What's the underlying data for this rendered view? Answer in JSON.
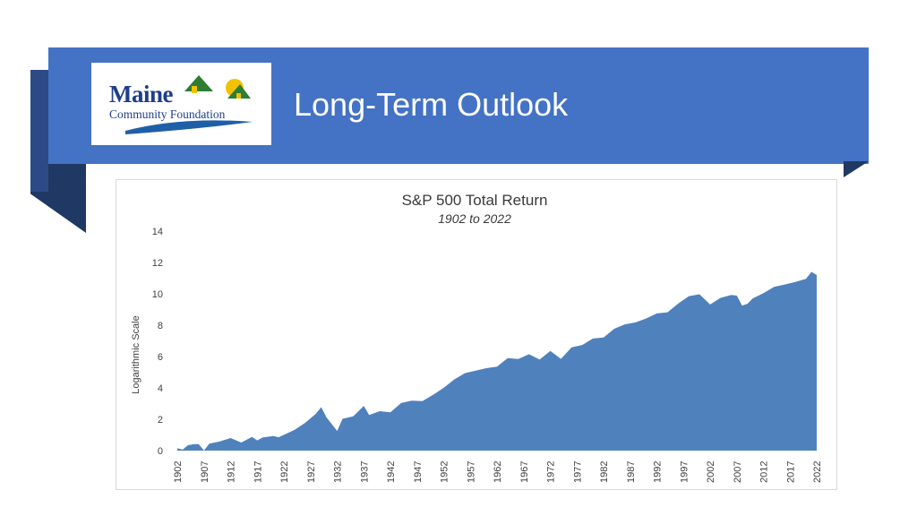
{
  "header": {
    "title": "Long-Term Outlook",
    "logo": {
      "name": "Maine",
      "subtitle": "Community Foundation"
    }
  },
  "colors": {
    "banner": "#4472c4",
    "ribbon_dark": "#1f3864",
    "area_fill": "#4f81bd",
    "logo_text": "#1f3f8a"
  },
  "chart_data": {
    "type": "area",
    "title": "S&P 500 Total Return",
    "subtitle": "1902 to 2022",
    "ylabel": "Logarithmic Scale",
    "xlabel": "",
    "ylim": [
      0,
      14
    ],
    "xlim": [
      1902,
      2022
    ],
    "yticks": [
      "0",
      "2",
      "4",
      "6",
      "8",
      "10",
      "12",
      "14"
    ],
    "xticks": [
      "1902",
      "1907",
      "1912",
      "1917",
      "1922",
      "1927",
      "1932",
      "1937",
      "1942",
      "1947",
      "1952",
      "1957",
      "1962",
      "1967",
      "1972",
      "1977",
      "1982",
      "1987",
      "1992",
      "1997",
      "2002",
      "2007",
      "2012",
      "2017",
      "2022"
    ],
    "grid": false,
    "legend": "none",
    "series": [
      {
        "x": [
          1902,
          1903,
          1904,
          1905,
          1906,
          1907,
          1908,
          1910,
          1912,
          1914,
          1916,
          1917,
          1918,
          1920,
          1921,
          1924,
          1926,
          1928,
          1929,
          1930,
          1932,
          1933,
          1935,
          1937,
          1938,
          1940,
          1942,
          1944,
          1946,
          1948,
          1950,
          1952,
          1954,
          1956,
          1958,
          1960,
          1962,
          1964,
          1966,
          1968,
          1970,
          1972,
          1974,
          1976,
          1978,
          1980,
          1982,
          1984,
          1986,
          1988,
          1990,
          1992,
          1994,
          1996,
          1998,
          2000,
          2002,
          2004,
          2006,
          2007,
          2008,
          2009,
          2010,
          2012,
          2014,
          2016,
          2018,
          2020,
          2021,
          2022
        ],
        "y": [
          0.15,
          0.02,
          0.3,
          0.4,
          0.45,
          0.05,
          0.45,
          0.55,
          0.75,
          0.5,
          0.9,
          0.7,
          0.85,
          0.9,
          0.8,
          1.3,
          1.8,
          2.4,
          2.8,
          2.1,
          1.2,
          2.0,
          2.2,
          2.9,
          2.3,
          2.5,
          2.4,
          3.0,
          3.2,
          3.2,
          3.6,
          4.0,
          4.5,
          4.9,
          5.1,
          5.3,
          5.4,
          5.9,
          5.8,
          6.1,
          5.8,
          6.4,
          5.9,
          6.6,
          6.7,
          7.1,
          7.2,
          7.8,
          8.1,
          8.2,
          8.4,
          8.7,
          8.8,
          9.4,
          9.9,
          10.0,
          9.3,
          9.7,
          9.9,
          9.9,
          9.3,
          9.4,
          9.7,
          10.0,
          10.4,
          10.6,
          10.8,
          11.0,
          11.4,
          11.2
        ]
      }
    ]
  }
}
